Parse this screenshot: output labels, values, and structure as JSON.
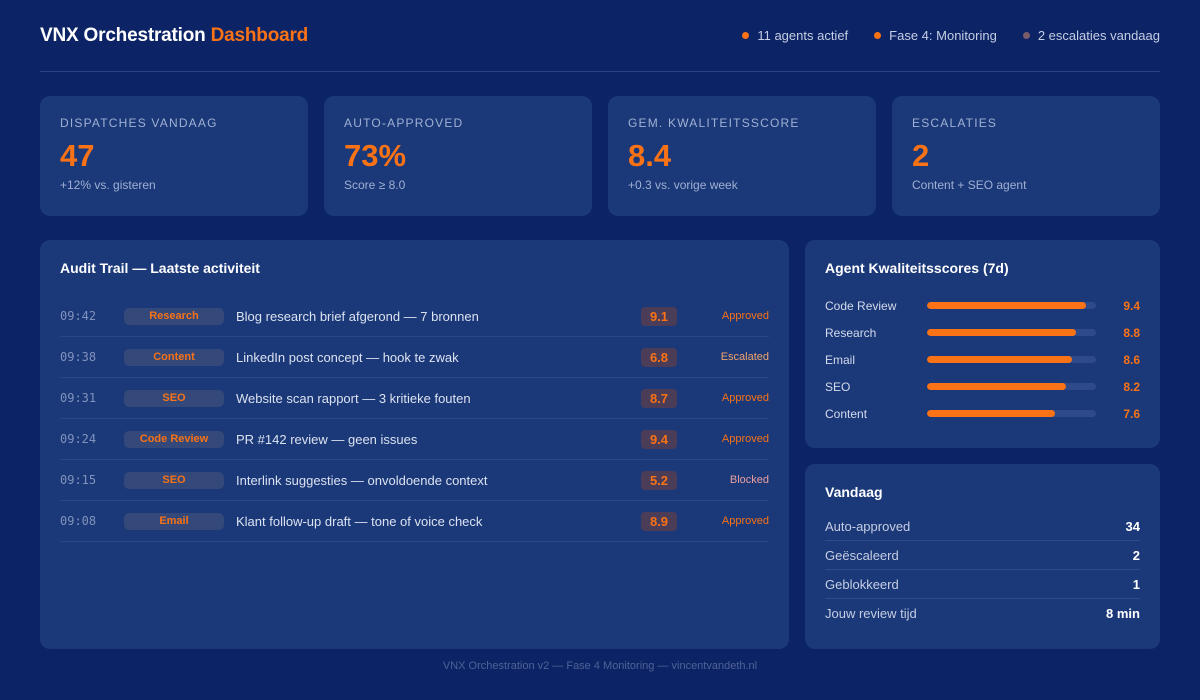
{
  "header": {
    "title_main": "VNX Orchestration",
    "title_accent": "Dashboard",
    "status": [
      {
        "label": "11 agents actief",
        "color": "#f97316"
      },
      {
        "label": "Fase 4: Monitoring",
        "color": "#f97316"
      },
      {
        "label": "2 escalaties vandaag",
        "color": "#7b5a6a"
      }
    ]
  },
  "kpis": [
    {
      "label": "Dispatches vandaag",
      "value": "47",
      "sub": "+12% vs. gisteren"
    },
    {
      "label": "Auto-approved",
      "value": "73%",
      "sub": "Score ≥ 8.0"
    },
    {
      "label": "Gem. kwaliteitsscore",
      "value": "8.4",
      "sub": "+0.3 vs. vorige week"
    },
    {
      "label": "Escalaties",
      "value": "2",
      "sub": "Content + SEO agent"
    }
  ],
  "audit": {
    "title": "Audit Trail — Laatste activiteit",
    "rows": [
      {
        "time": "09:42",
        "agent": "Research",
        "desc": "Blog research brief afgerond — 7 bronnen",
        "score": "9.1",
        "status": "Approved",
        "status_color": "#f97316"
      },
      {
        "time": "09:38",
        "agent": "Content",
        "desc": "LinkedIn post concept — hook te zwak",
        "score": "6.8",
        "status": "Escalated",
        "status_color": "#f0a46a"
      },
      {
        "time": "09:31",
        "agent": "SEO",
        "desc": "Website scan rapport — 3 kritieke fouten",
        "score": "8.7",
        "status": "Approved",
        "status_color": "#f97316"
      },
      {
        "time": "09:24",
        "agent": "Code Review",
        "desc": "PR #142 review — geen issues",
        "score": "9.4",
        "status": "Approved",
        "status_color": "#f97316"
      },
      {
        "time": "09:15",
        "agent": "SEO",
        "desc": "Interlink suggesties — onvoldoende context",
        "score": "5.2",
        "status": "Blocked",
        "status_color": "#e8a0a0"
      },
      {
        "time": "09:08",
        "agent": "Email",
        "desc": "Klant follow-up draft — tone of voice check",
        "score": "8.9",
        "status": "Approved",
        "status_color": "#f97316"
      }
    ]
  },
  "scores": {
    "title": "Agent Kwaliteitsscores (7d)",
    "max": 10,
    "items": [
      {
        "name": "Code Review",
        "value": "9.4",
        "level": 0.94
      },
      {
        "name": "Research",
        "value": "8.8",
        "level": 0.88
      },
      {
        "name": "Email",
        "value": "8.6",
        "level": 0.86
      },
      {
        "name": "SEO",
        "value": "8.2",
        "level": 0.82
      },
      {
        "name": "Content",
        "value": "7.6",
        "level": 0.76
      }
    ]
  },
  "today": {
    "title": "Vandaag",
    "rows": [
      {
        "label": "Auto-approved",
        "value": "34"
      },
      {
        "label": "Geëscaleerd",
        "value": "2"
      },
      {
        "label": "Geblokkeerd",
        "value": "1"
      },
      {
        "label": "Jouw review tijd",
        "value": "8 min"
      }
    ]
  },
  "footer": "VNX Orchestration v2 — Fase 4 Monitoring — vincentvandeth.nl"
}
